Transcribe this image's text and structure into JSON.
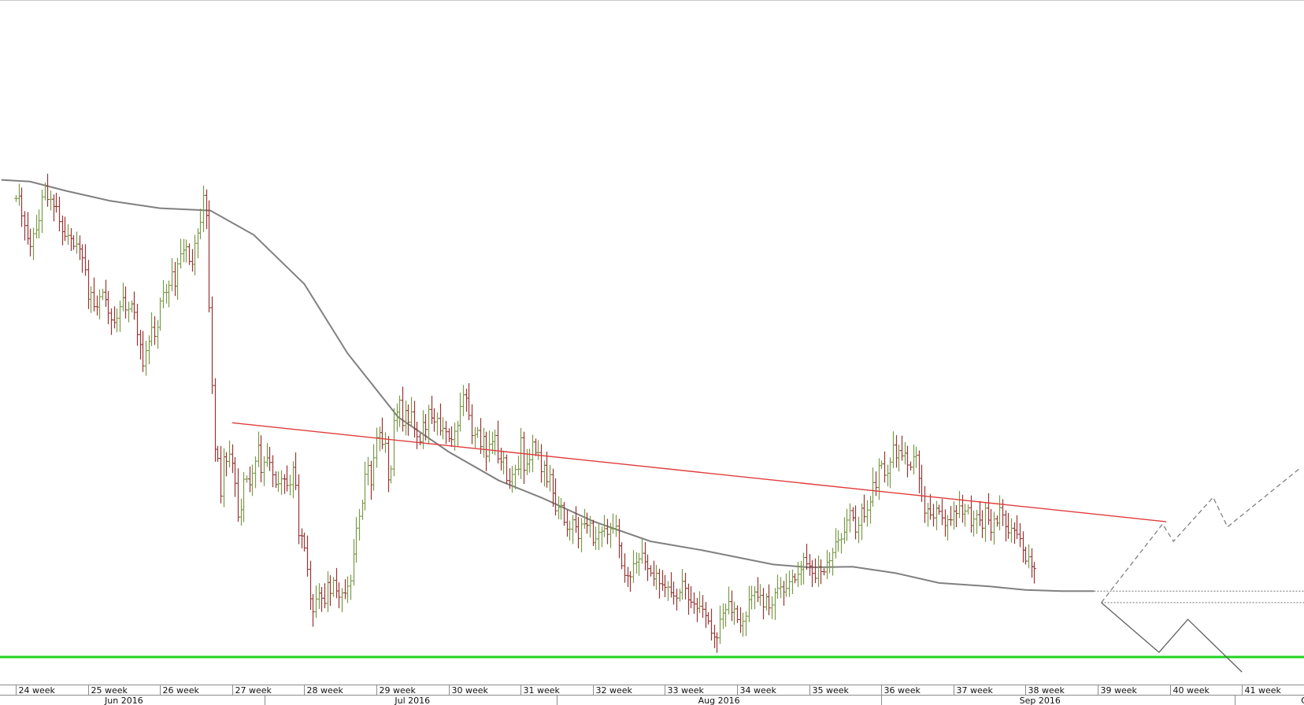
{
  "chart_data": {
    "type": "ohlc",
    "x_axis": {
      "week_labels": [
        "24 week",
        "25 week",
        "26 week",
        "27 week",
        "28 week",
        "29 week",
        "30 week",
        "31 week",
        "32 week",
        "33 week",
        "34 week",
        "35 week",
        "36 week",
        "37 week",
        "38 week",
        "39 week",
        "40 week",
        "41 week"
      ],
      "month_labels": [
        "Jun 2016",
        "Jul 2016",
        "Aug 2016",
        "Sep 2016",
        "Oc"
      ],
      "first_week_number": 24
    },
    "price_scale": {
      "min": 0,
      "max": 100,
      "note": "no price axis printed; values are relative levels, 100 = top of plot"
    },
    "price_bars": {
      "series_name": "",
      "up_color": "#7a9a4a",
      "down_color": "#9a3434",
      "week_value": [
        24.0,
        24.04,
        24.08,
        24.12,
        24.16,
        24.2,
        24.24,
        24.28,
        24.32,
        24.36,
        24.4,
        24.44,
        24.48,
        24.52,
        24.56,
        24.6,
        24.64,
        24.68,
        24.72,
        24.76,
        24.8,
        24.84,
        24.88,
        24.92,
        24.96,
        25.0,
        25.04,
        25.08,
        25.12,
        25.16,
        25.2,
        25.24,
        25.28,
        25.32,
        25.36,
        25.4,
        25.44,
        25.48,
        25.52,
        25.56,
        25.6,
        25.64,
        25.68,
        25.72,
        25.76,
        25.8,
        25.84,
        25.88,
        25.92,
        25.96,
        26.0,
        26.04,
        26.08,
        26.12,
        26.16,
        26.2,
        26.24,
        26.28,
        26.32,
        26.36,
        26.4,
        26.44,
        26.48,
        26.52,
        26.56,
        26.6,
        26.64,
        26.68,
        26.72,
        26.76,
        26.8,
        26.84,
        26.88,
        26.92,
        26.96,
        27.0,
        27.04,
        27.08,
        27.12,
        27.16,
        27.2,
        27.24,
        27.28,
        27.32,
        27.36,
        27.4,
        27.44,
        27.48,
        27.52,
        27.56,
        27.6,
        27.64,
        27.68,
        27.72,
        27.76,
        27.8,
        27.84,
        27.88,
        27.92,
        27.96,
        28.0,
        28.04,
        28.08,
        28.12,
        28.16,
        28.2,
        28.24,
        28.28,
        28.32,
        28.36,
        28.4,
        28.44,
        28.48,
        28.52,
        28.56,
        28.6,
        28.64,
        28.68,
        28.72,
        28.76,
        28.8,
        28.84,
        28.88,
        28.92,
        28.96,
        29.0,
        29.04,
        29.08,
        29.12,
        29.16,
        29.2,
        29.24,
        29.28,
        29.32,
        29.36,
        29.4,
        29.44,
        29.48,
        29.52,
        29.56,
        29.6,
        29.64,
        29.68,
        29.72,
        29.76,
        29.8,
        29.84,
        29.88,
        29.92,
        29.96,
        30.0,
        30.04,
        30.08,
        30.12,
        30.16,
        30.2,
        30.24,
        30.28,
        30.32,
        30.36,
        30.4,
        30.44,
        30.48,
        30.52,
        30.56,
        30.6,
        30.64,
        30.68,
        30.72,
        30.76,
        30.8,
        30.84,
        30.88,
        30.92,
        30.96,
        31.0,
        31.04,
        31.08,
        31.12,
        31.16,
        31.2,
        31.24,
        31.28,
        31.32,
        31.36,
        31.4,
        31.44,
        31.48,
        31.52,
        31.56,
        31.6,
        31.64,
        31.68,
        31.72,
        31.76,
        31.8,
        31.84,
        31.88,
        31.92,
        31.96,
        32.0,
        32.04,
        32.08,
        32.12,
        32.16,
        32.2,
        32.24,
        32.28,
        32.32,
        32.36,
        32.4,
        32.44,
        32.48,
        32.52,
        32.56,
        32.6,
        32.64,
        32.68,
        32.72,
        32.76,
        32.8,
        32.84,
        32.88,
        32.92,
        32.96,
        33.0,
        33.04,
        33.08,
        33.12,
        33.16,
        33.2,
        33.24,
        33.28,
        33.32,
        33.36,
        33.4,
        33.44,
        33.48,
        33.52,
        33.56,
        33.6,
        33.64,
        33.68,
        33.72,
        33.76,
        33.8,
        33.84,
        33.88,
        33.92,
        33.96,
        34.0,
        34.04,
        34.08,
        34.12,
        34.16,
        34.2,
        34.24,
        34.28,
        34.32,
        34.36,
        34.4,
        34.44,
        34.48,
        34.52,
        34.56,
        34.6,
        34.64,
        34.68,
        34.72,
        34.76,
        34.8,
        34.84,
        34.88,
        34.92,
        34.96,
        35.0,
        35.04,
        35.08,
        35.12,
        35.16,
        35.2,
        35.24,
        35.28,
        35.32,
        35.36,
        35.4,
        35.44,
        35.48,
        35.52,
        35.56,
        35.6,
        35.64,
        35.68,
        35.72,
        35.76,
        35.8,
        35.84,
        35.88,
        35.92,
        35.96,
        36.0,
        36.04,
        36.08,
        36.12,
        36.16,
        36.2,
        36.24,
        36.28,
        36.32,
        36.36,
        36.4,
        36.44,
        36.48,
        36.52,
        36.56,
        36.6,
        36.64,
        36.68,
        36.72,
        36.76,
        36.8,
        36.84,
        36.88,
        36.92,
        36.96,
        37.0,
        37.04,
        37.08,
        37.12,
        37.16,
        37.2,
        37.24,
        37.28,
        37.32,
        37.36,
        37.4,
        37.44,
        37.48,
        37.52,
        37.56,
        37.6,
        37.64,
        37.68,
        37.72,
        37.76,
        37.8,
        37.84,
        37.88,
        37.92,
        37.96,
        38.0,
        38.04,
        38.08,
        38.12,
        38.16,
        38.2,
        38.24,
        38.28,
        38.32,
        38.36,
        38.4,
        38.44,
        38.48,
        38.52,
        38.56,
        38.6,
        38.64,
        38.68,
        38.72,
        38.76,
        38.8,
        38.84,
        38.88,
        38.92,
        38.96
      ],
      "close": [
        79.29,
        79.7,
        76.28,
        74.6,
        72.36,
        70.98,
        73.2,
        73.86,
        75.45,
        79.56,
        81.43,
        79.12,
        79.16,
        77.91,
        77.89,
        75.29,
        73.55,
        72.75,
        72.9,
        72.35,
        71.01,
        71.41,
        70.55,
        69.02,
        66.96,
        61.85,
        63.04,
        60.59,
        60.53,
        62.3,
        63.08,
        61.81,
        59.46,
        58.28,
        57.85,
        58.58,
        60.58,
        62.14,
        60.01,
        60.17,
        61.05,
        59.59,
        55.75,
        54.03,
        50.33,
        52.98,
        54.58,
        57.01,
        55.44,
        57.01,
        61.55,
        63.04,
        63.05,
        64.27,
        66.61,
        64.12,
        67.99,
        69.72,
        70.36,
        70.93,
        68.39,
        67.9,
        71.53,
        73.3,
        75.17,
        79.82,
        76.36,
        60.41,
        46.95,
        35.91,
        34.35,
        27.82,
        34.61,
        33.82,
        35.07,
        33.51,
        30.04,
        24.2,
        25.46,
        30.73,
        30.79,
        29.76,
        31.78,
        33.86,
        36.63,
        31.91,
        33.68,
        34.42,
        33.64,
        31.5,
        29.83,
        29.96,
        30.8,
        30.77,
        29.66,
        29.8,
        32.79,
        29.68,
        20.99,
        20.93,
        18.85,
        15.16,
        10.07,
        7.81,
        10.01,
        11.06,
        10.17,
        9.26,
        12.88,
        10.99,
        13.25,
        11.42,
        10.34,
        11.09,
        11.04,
        12.25,
        13.18,
        17.8,
        22.28,
        24.33,
        26.6,
        31.61,
        33.12,
        29.78,
        34.44,
        37.96,
        38.82,
        36.76,
        36.95,
        30.64,
        32.51,
        40.88,
        42.36,
        44.39,
        40.03,
        42.62,
        40.61,
        42.38,
        39.42,
        38.09,
        37.2,
        40.55,
        39.35,
        42.81,
        41.32,
        40.66,
        41.26,
        39.12,
        39.54,
        38.95,
        37.75,
        37.59,
        39.04,
        40.03,
        43.33,
        45.34,
        44.76,
        41.77,
        38.29,
        38.49,
        39.18,
        36.37,
        38.14,
        34.72,
        36.79,
        37.25,
        38.3,
        34.28,
        33.72,
        34.43,
        30.51,
        30.33,
        31.57,
        32.43,
        32.47,
        37.91,
        32.29,
        33.36,
        34.1,
        37.18,
        35.34,
        35.34,
        32.05,
        33.15,
        30.31,
        31.52,
        28.32,
        25.29,
        25.89,
        26.22,
        23.29,
        22.07,
        22.11,
        23.72,
        22.53,
        20.48,
        22.99,
        23.04,
        22.8,
        23.14,
        19.78,
        20.42,
        21.57,
        21.75,
        22.19,
        21.21,
        22.17,
        22.25,
        22.64,
        19.23,
        15.78,
        14.1,
        14.02,
        13.87,
        16.12,
        16.4,
        16.96,
        17.95,
        16.46,
        15.28,
        14.51,
        13.51,
        14.46,
        12.68,
        12.49,
        12.05,
        12.09,
        11.11,
        10.54,
        10.18,
        11.19,
        13.08,
        11.87,
        9.88,
        9.48,
        9.16,
        8.41,
        8.78,
        8.26,
        7.16,
        6.22,
        4.11,
        3.45,
        3.31,
        6.54,
        7.59,
        8.19,
        9.58,
        7.7,
        8.32,
        6.47,
        5.42,
        6.19,
        7.06,
        9.92,
        10.63,
        11.24,
        10.33,
        10.68,
        8.65,
        10.42,
        8.49,
        8.99,
        11.12,
        11.87,
        12.12,
        11.23,
        11.86,
        13.02,
        13.87,
        13.35,
        14.32,
        15.13,
        17.21,
        16.11,
        15.73,
        14.46,
        13.61,
        15.63,
        14.76,
        14.72,
        16.38,
        16.65,
        18.07,
        19.91,
        20.24,
        20.4,
        21.58,
        23.68,
        25.31,
        24.06,
        21.6,
        22.79,
        25.73,
        24.27,
        25.41,
        26.83,
        30.17,
        29.32,
        33.11,
        33.39,
        31.43,
        31.78,
        33.7,
        36.66,
        34.44,
        35.69,
        34.77,
        35.26,
        33.2,
        32.83,
        34.62,
        34.89,
        30.89,
        27.85,
        24.88,
        25.61,
        24.56,
        24.06,
        25.73,
        25.19,
        24.06,
        22.73,
        23.74,
        23.72,
        25.22,
        24.82,
        26.13,
        24.7,
        25.24,
        25.79,
        22.76,
        23.85,
        24.61,
        23.68,
        22.27,
        25.75,
        23.67,
        21.57,
        23.88,
        23.15,
        25.82,
        24.56,
        22.56,
        21.48,
        22.26,
        21.93,
        21.22,
        20.47,
        18.48,
        16.59,
        17.33,
        15.62,
        15.29
      ]
    },
    "lines": [
      {
        "kind": "moving_average",
        "color": "#808080",
        "points": [
          [
            23.8,
            82.5
          ],
          [
            24.2,
            82.2
          ],
          [
            24.7,
            80.6
          ],
          [
            25.3,
            78.9
          ],
          [
            26.0,
            77.6
          ],
          [
            26.7,
            77.2
          ],
          [
            27.3,
            73.0
          ],
          [
            28.0,
            64.5
          ],
          [
            28.6,
            52.5
          ],
          [
            29.3,
            41.5
          ],
          [
            30.0,
            35.5
          ],
          [
            30.7,
            30.5
          ],
          [
            31.3,
            27.5
          ],
          [
            32.0,
            23.5
          ],
          [
            32.8,
            20.0
          ],
          [
            33.5,
            18.5
          ],
          [
            34.5,
            16.0
          ],
          [
            35.0,
            15.5
          ],
          [
            35.6,
            15.6
          ],
          [
            36.2,
            14.5
          ],
          [
            36.8,
            12.8
          ],
          [
            37.5,
            12.2
          ],
          [
            38.0,
            11.6
          ],
          [
            38.5,
            11.4
          ],
          [
            38.95,
            11.4
          ]
        ]
      },
      {
        "kind": "trendline",
        "color": "#e03c3c",
        "points": [
          [
            27.0,
            40.5
          ],
          [
            39.95,
            23.4
          ]
        ]
      },
      {
        "kind": "horizontal_level",
        "color": "#22d322",
        "level": 0.0
      },
      {
        "kind": "dotted_level",
        "color": "#707070",
        "start_week": 38.95,
        "level": 11.4
      },
      {
        "kind": "dotted_level",
        "color": "#707070",
        "start_week": 39.05,
        "level": 9.4
      },
      {
        "kind": "projection",
        "style": "dashed",
        "color": "#808080",
        "points": [
          [
            39.05,
            9.4
          ],
          [
            39.9,
            23.0
          ],
          [
            40.05,
            20.0
          ],
          [
            40.6,
            27.6
          ],
          [
            40.8,
            22.5
          ],
          [
            41.8,
            32.6
          ]
        ]
      },
      {
        "kind": "projection",
        "style": "solid",
        "color": "#606060",
        "points": [
          [
            39.05,
            9.4
          ],
          [
            39.85,
            0.8
          ],
          [
            40.25,
            6.5
          ],
          [
            41.0,
            -2.6
          ]
        ]
      }
    ]
  }
}
